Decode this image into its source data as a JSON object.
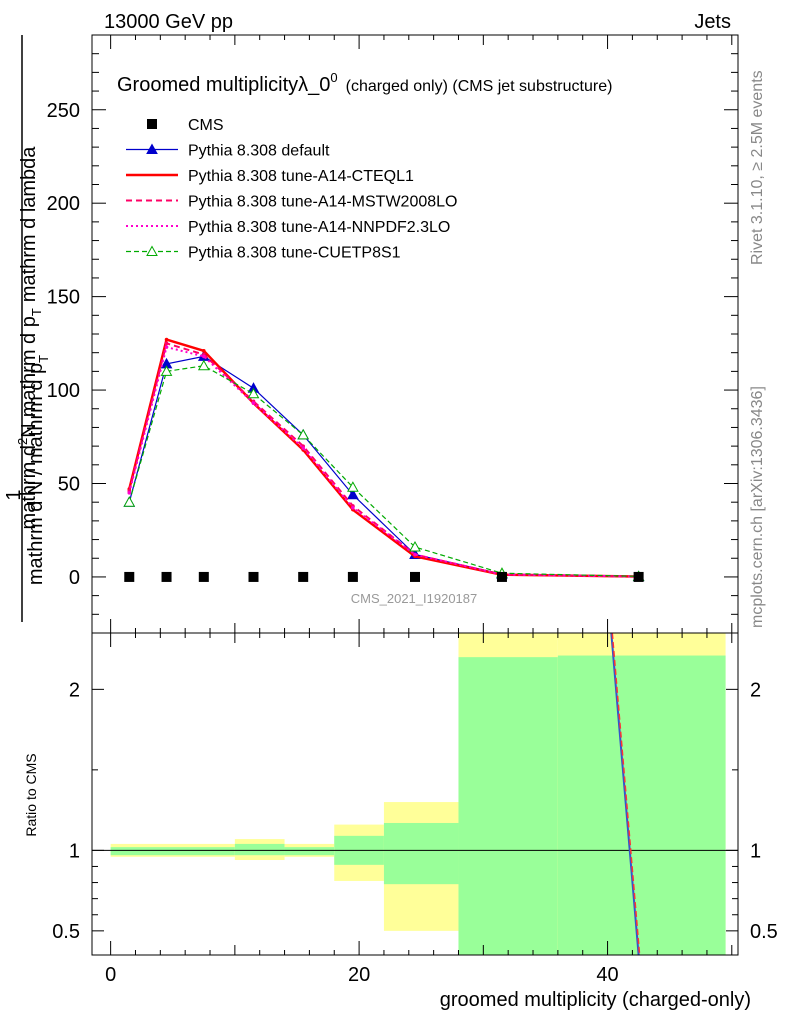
{
  "header": {
    "left": "13000 GeV pp",
    "right": "Jets"
  },
  "side_labels": {
    "rivet": "Rivet 3.1.10, ≥ 2.5M events",
    "mcplots": "mcplots.cern.ch [arXiv:1306.3436]"
  },
  "chart_data": [
    {
      "type": "line",
      "title_main": "Groomed multiplicityλ_0",
      "title_sup": "0",
      "title_small": "(charged only) (CMS jet substructure)",
      "ylabel_parts": [
        "1",
        "mathrm d N / mathrm d p",
        "T",
        "mathrm d N",
        "mathrm d p",
        "T",
        "mathrm d lambda",
        "mathrm d",
        "2",
        "N"
      ],
      "ylabel_line_bottom": "mathrm d N / mathrm d p",
      "ylabel_line_top_a": "mathrm d",
      "ylabel_line_top_b": "N",
      "ylabel_line_top_c": "mathrm d p",
      "ylabel_line_top_d": "mathrm d lambda",
      "ylabel_one": "1",
      "ylabel_sub_T": "T",
      "ylabel_sup_2": "2",
      "analysis_id": "CMS_2021_I1920187",
      "xlim": [
        -1.5,
        50.5
      ],
      "ylim": [
        -30,
        290
      ],
      "yticks": [
        0,
        50,
        100,
        150,
        200,
        250
      ],
      "x": [
        1.5,
        4.5,
        7.5,
        11.5,
        15.5,
        19.5,
        24.5,
        31.5,
        42.5
      ],
      "legend_position": "top-left",
      "series": [
        {
          "name": "CMS",
          "color": "#000000",
          "style": "square",
          "values": [
            0,
            0,
            0,
            0,
            0,
            0,
            0,
            0,
            0
          ]
        },
        {
          "name": "Pythia 8.308 default",
          "color": "#0000cc",
          "style": "solid-triangle",
          "values": [
            40,
            114,
            118,
            101,
            76,
            44,
            12,
            1.5,
            0.2
          ]
        },
        {
          "name": "Pythia 8.308 tune-A14-CTEQL1",
          "color": "#ff0000",
          "style": "solid-thick",
          "values": [
            47,
            127,
            121,
            93,
            68,
            36,
            11,
            1.2,
            0.2
          ]
        },
        {
          "name": "Pythia 8.308 tune-A14-MSTW2008LO",
          "color": "#ff0066",
          "style": "dashed",
          "values": [
            46,
            125,
            119,
            94,
            70,
            38,
            12,
            1.3,
            0.2
          ]
        },
        {
          "name": "Pythia 8.308 tune-A14-NNPDF2.3LO",
          "color": "#ff00cc",
          "style": "dotted",
          "values": [
            45,
            123,
            118,
            93,
            69,
            37,
            12,
            1.3,
            0.2
          ]
        },
        {
          "name": "Pythia 8.308 tune-CUETP8S1",
          "color": "#00aa00",
          "style": "dashed-open-triangle",
          "values": [
            40,
            110,
            113,
            98,
            76,
            48,
            16,
            2.0,
            0.3
          ]
        }
      ]
    },
    {
      "type": "area",
      "ylabel": "Ratio to CMS",
      "xlabel": "groomed multiplicity (charged-only)",
      "xlim": [
        -1.5,
        50.5
      ],
      "ylim": [
        0.35,
        2.35
      ],
      "yticks": [
        0.5,
        1,
        2
      ],
      "xticks": [
        0,
        20,
        40
      ],
      "bins": [
        {
          "lo": 0,
          "hi": 10,
          "green_lo": 0.97,
          "green_hi": 1.02,
          "yellow_lo": 0.96,
          "yellow_hi": 1.04
        },
        {
          "lo": 10,
          "hi": 14,
          "green_lo": 0.97,
          "green_hi": 1.04,
          "yellow_lo": 0.94,
          "yellow_hi": 1.07
        },
        {
          "lo": 14,
          "hi": 18,
          "green_lo": 0.97,
          "green_hi": 1.02,
          "yellow_lo": 0.96,
          "yellow_hi": 1.04
        },
        {
          "lo": 18,
          "hi": 22,
          "green_lo": 0.91,
          "green_hi": 1.09,
          "yellow_lo": 0.81,
          "yellow_hi": 1.16
        },
        {
          "lo": 22,
          "hi": 28,
          "green_lo": 0.79,
          "green_hi": 1.17,
          "yellow_lo": 0.5,
          "yellow_hi": 1.3
        },
        {
          "lo": 28,
          "hi": 36,
          "green_lo": 0.35,
          "green_hi": 2.2,
          "yellow_lo": 0.35,
          "yellow_hi": 2.35
        },
        {
          "lo": 36,
          "hi": 49.5,
          "green_lo": 0.35,
          "green_hi": 2.21,
          "yellow_lo": 0.35,
          "yellow_hi": 2.35
        }
      ],
      "ratio_line": {
        "x": [
          40.3,
          42.5
        ],
        "y": [
          2.35,
          0.35
        ]
      }
    }
  ]
}
